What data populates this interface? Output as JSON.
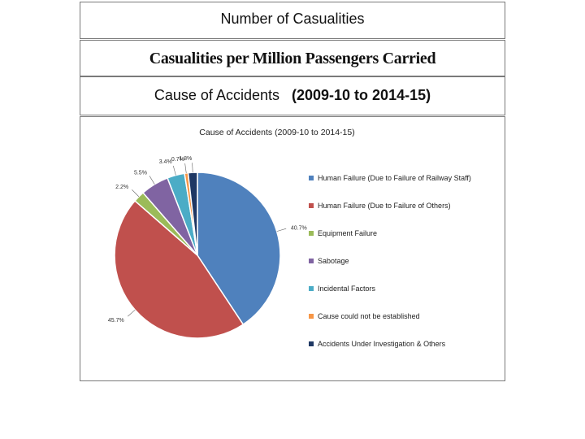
{
  "panels": {
    "title_1": "Number of Casualities",
    "title_2": "Casualities per Million Passengers Carried",
    "title_3_main": "Cause  of Accidents",
    "title_3_years": "(2009-10 to 2014-15)"
  },
  "chart_data": {
    "type": "pie",
    "title": "Cause of Accidents (2009-10 to 2014-15)",
    "legend_position": "right",
    "slices": [
      {
        "name": "Human Failure (Due to Failure of Railway Staff)",
        "value": 40.7,
        "label": "40.7%",
        "color": "#4f81bd"
      },
      {
        "name": "Human Failure (Due to Failure of Others)",
        "value": 45.7,
        "label": "45.7%",
        "color": "#c0504d"
      },
      {
        "name": "Equipment Failure",
        "value": 2.2,
        "label": "2.2%",
        "color": "#9bbb59"
      },
      {
        "name": "Sabotage",
        "value": 5.5,
        "label": "5.5%",
        "color": "#8064a2"
      },
      {
        "name": "Incidental Factors",
        "value": 3.4,
        "label": "3.4%",
        "color": "#4bacc6"
      },
      {
        "name": "Cause could not be established",
        "value": 0.7,
        "label": "0.7%",
        "color": "#f79646"
      },
      {
        "name": "Accidents Under Investigation & Others",
        "value": 1.8,
        "label": "1.8%",
        "color": "#1f3864"
      }
    ]
  }
}
